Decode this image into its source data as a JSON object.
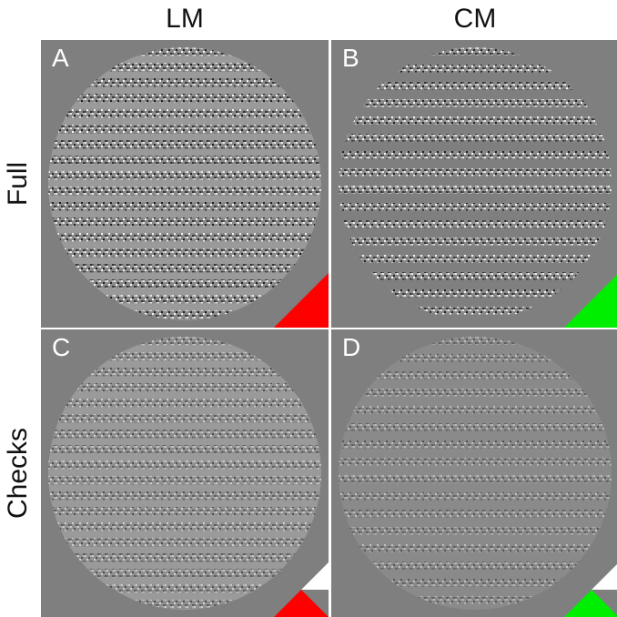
{
  "columns": {
    "lm": "LM",
    "cm": "CM"
  },
  "rows": {
    "full": "Full",
    "checks": "Checks"
  },
  "panels": {
    "a": {
      "letter": "A",
      "corner_color": "#ff0000",
      "corner_style": "full"
    },
    "b": {
      "letter": "B",
      "corner_color": "#00ee00",
      "corner_style": "full"
    },
    "c": {
      "letter": "C",
      "corner_color": "#ff0000",
      "corner_style": "checks"
    },
    "d": {
      "letter": "D",
      "corner_color": "#00ee00",
      "corner_style": "checks"
    }
  },
  "colors": {
    "background": "#7f7f7f",
    "divider": "#ffffff"
  }
}
